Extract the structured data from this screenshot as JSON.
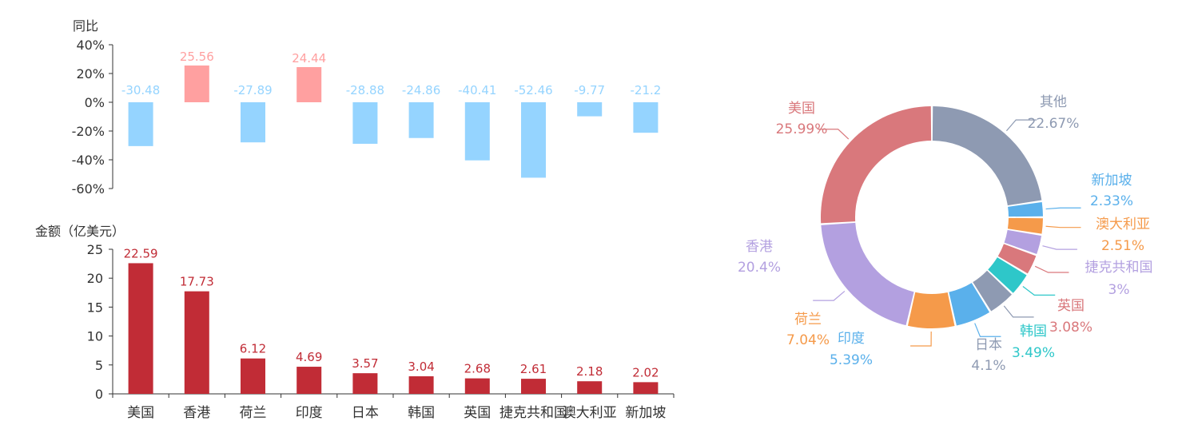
{
  "chart_data": [
    {
      "type": "bar",
      "title": "",
      "ylabel": "同比",
      "xlabel": "",
      "categories": [
        "美国",
        "香港",
        "荷兰",
        "印度",
        "日本",
        "韩国",
        "英国",
        "捷克共和国",
        "澳大利亚",
        "新加坡"
      ],
      "values": [
        -30.48,
        25.56,
        -27.89,
        24.44,
        -28.88,
        -24.86,
        -40.41,
        -52.46,
        -9.77,
        -21.2
      ],
      "value_labels": [
        "-30.48",
        "25.56",
        "-27.89",
        "24.44",
        "-28.88",
        "-24.86",
        "-40.41",
        "-52.46",
        "-9.77",
        "-21.2"
      ],
      "ylim": [
        -60,
        40
      ],
      "yticks": [
        40,
        20,
        0,
        -20,
        -40,
        -60
      ],
      "ytick_labels": [
        "40%",
        "20%",
        "0%",
        "-20%",
        "-40%",
        "-60%"
      ],
      "positive_color": "#ffa0a0",
      "negative_color": "#95d4ff",
      "grid": false
    },
    {
      "type": "bar",
      "title": "",
      "ylabel": "金额（亿美元）",
      "xlabel": "",
      "categories": [
        "美国",
        "香港",
        "荷兰",
        "印度",
        "日本",
        "韩国",
        "英国",
        "捷克共和国",
        "澳大利亚",
        "新加坡"
      ],
      "values": [
        22.59,
        17.73,
        6.12,
        4.69,
        3.57,
        3.04,
        2.68,
        2.61,
        2.18,
        2.02
      ],
      "value_labels": [
        "22.59",
        "17.73",
        "6.12",
        "4.69",
        "3.57",
        "3.04",
        "2.68",
        "2.61",
        "2.18",
        "2.02"
      ],
      "ylim": [
        0,
        25
      ],
      "yticks": [
        25,
        20,
        15,
        10,
        5,
        0
      ],
      "ytick_labels": [
        "25",
        "20",
        "15",
        "10",
        "5",
        "0"
      ],
      "bar_color": "#c12c36",
      "label_color": "#c12c36",
      "grid": false
    },
    {
      "type": "pie",
      "title": "",
      "donut": true,
      "slices": [
        {
          "name": "其他",
          "value": 22.67,
          "label": "22.67%",
          "color": "#8e9ab2"
        },
        {
          "name": "新加坡",
          "value": 2.33,
          "label": "2.33%",
          "color": "#5ab0eb"
        },
        {
          "name": "澳大利亚",
          "value": 2.51,
          "label": "2.51%",
          "color": "#f59a4a"
        },
        {
          "name": "捷克共和国",
          "value": 3.0,
          "label": "3%",
          "color": "#b3a0e0"
        },
        {
          "name": "英国",
          "value": 3.08,
          "label": "3.08%",
          "color": "#d9787c"
        },
        {
          "name": "韩国",
          "value": 3.49,
          "label": "3.49%",
          "color": "#2ec7c9"
        },
        {
          "name": "日本",
          "value": 4.1,
          "label": "4.1%",
          "color": "#8e9ab2"
        },
        {
          "name": "印度",
          "value": 5.39,
          "label": "5.39%",
          "color": "#5ab0eb"
        },
        {
          "name": "荷兰",
          "value": 7.04,
          "label": "7.04%",
          "color": "#f59a4a"
        },
        {
          "name": "香港",
          "value": 20.4,
          "label": "20.4%",
          "color": "#b3a0e0"
        },
        {
          "name": "美国",
          "value": 25.99,
          "label": "25.99%",
          "color": "#d9787c"
        }
      ]
    }
  ]
}
